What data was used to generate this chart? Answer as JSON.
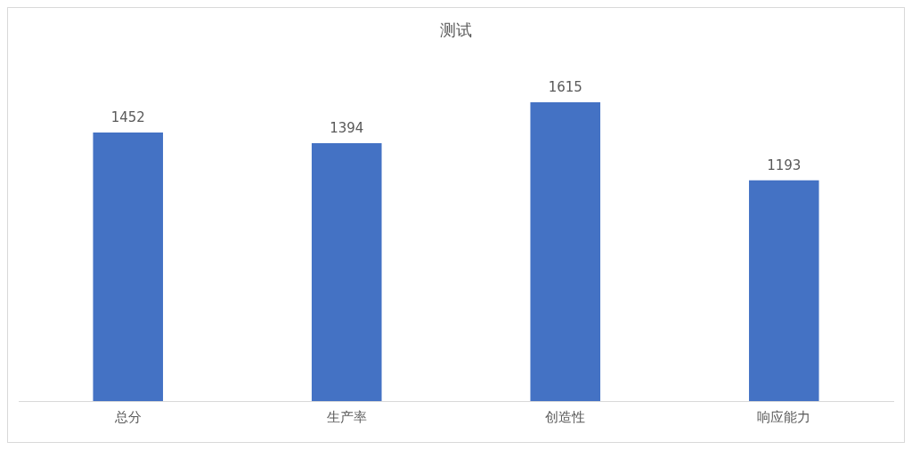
{
  "chart_data": {
    "type": "bar",
    "title": "测试",
    "categories": [
      "总分",
      "生产率",
      "创造性",
      "响应能力"
    ],
    "values": [
      1452,
      1394,
      1615,
      1193
    ],
    "color": "#4472c4",
    "data_labels": true,
    "grid": false,
    "legend": false
  }
}
